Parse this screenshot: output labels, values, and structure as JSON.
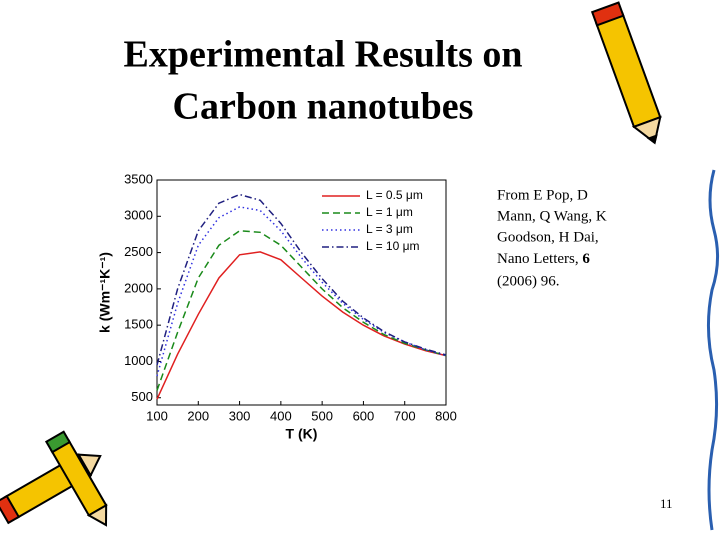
{
  "slide": {
    "title": [
      "Experimental Results on",
      "Carbon nanotubes"
    ],
    "citation": {
      "lines": [
        "From E Pop, D",
        "Mann, Q Wang, K",
        "Goodson, H Dai,"
      ],
      "journal": "Nano Letters,",
      "volume": "6",
      "year_pages": "(2006) 96."
    },
    "page_number": "11"
  },
  "chart_data": {
    "type": "line",
    "xlabel": "T (K)",
    "ylabel": "k (Wm⁻¹K⁻¹)",
    "x": [
      100,
      150,
      200,
      250,
      300,
      350,
      400,
      450,
      500,
      550,
      600,
      650,
      700,
      750,
      800
    ],
    "series": [
      {
        "name": "L = 0.5 μm",
        "color": "#e02020",
        "line_style": "solid",
        "values": [
          480,
          1100,
          1650,
          2150,
          2470,
          2510,
          2400,
          2150,
          1900,
          1680,
          1500,
          1350,
          1240,
          1150,
          1080
        ]
      },
      {
        "name": "L = 1 μm",
        "color": "#1a8a1a",
        "line_style": "dashed",
        "values": [
          600,
          1400,
          2150,
          2600,
          2800,
          2780,
          2600,
          2300,
          2000,
          1740,
          1540,
          1370,
          1250,
          1160,
          1080
        ]
      },
      {
        "name": "L = 3 μm",
        "color": "#3030e0",
        "line_style": "dotted",
        "values": [
          800,
          1800,
          2600,
          2980,
          3130,
          3080,
          2800,
          2430,
          2090,
          1800,
          1580,
          1400,
          1270,
          1160,
          1080
        ]
      },
      {
        "name": "L = 10 μm",
        "color": "#202080",
        "line_style": "dashdot",
        "values": [
          950,
          2000,
          2800,
          3180,
          3300,
          3220,
          2900,
          2500,
          2140,
          1830,
          1600,
          1410,
          1270,
          1170,
          1090
        ]
      }
    ],
    "xlim": [
      100,
      800
    ],
    "xticks": [
      100,
      200,
      300,
      400,
      500,
      600,
      700,
      800
    ],
    "ylim": [
      400,
      3500
    ],
    "yticks": [
      500,
      1000,
      1500,
      2000,
      2500,
      3000,
      3500
    ],
    "grid": false,
    "legend": "upper right"
  }
}
